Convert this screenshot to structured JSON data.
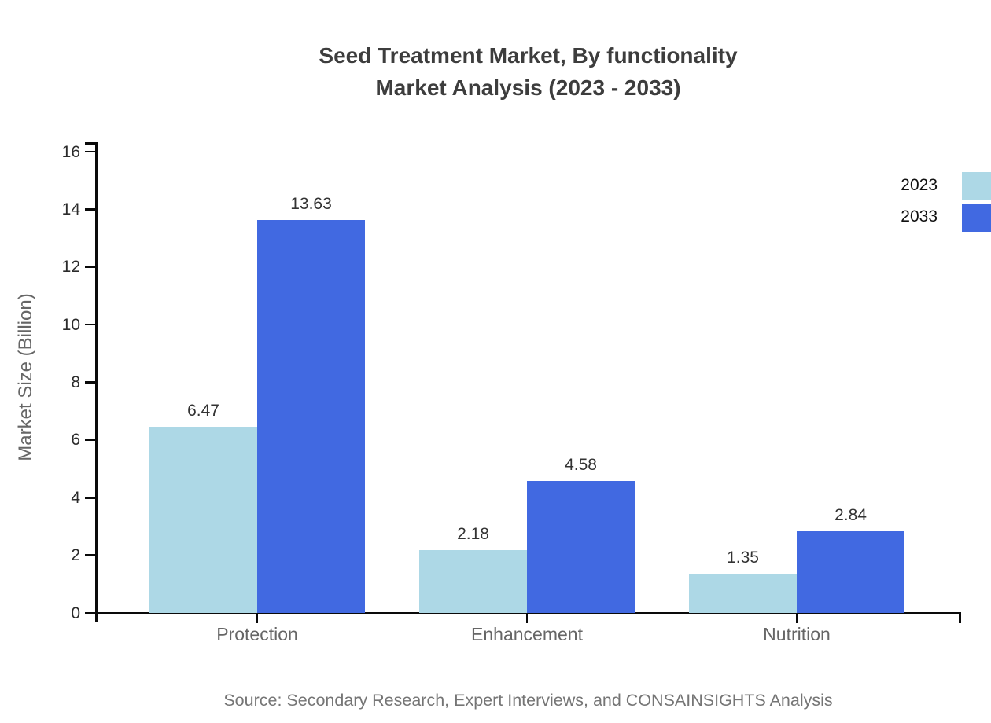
{
  "title": {
    "line1": "Seed Treatment Market, By functionality",
    "line2": "Market Analysis (2023 - 2033)"
  },
  "chart_data": {
    "type": "bar",
    "categories": [
      "Protection",
      "Enhancement",
      "Nutrition"
    ],
    "series": [
      {
        "name": "2023",
        "color": "#ADD8E6",
        "values": [
          6.47,
          2.18,
          1.35
        ]
      },
      {
        "name": "2033",
        "color": "#4169E1",
        "values": [
          13.63,
          4.58,
          2.84
        ]
      }
    ],
    "title": "Seed Treatment Market, By functionality Market Analysis (2023 - 2033)",
    "xlabel": "",
    "ylabel": "Market Size (Billion)",
    "ylim": [
      0,
      16
    ],
    "ytick_step": 2,
    "grid": false,
    "legend_position": "top-right",
    "value_labels": true
  },
  "source": "Source: Secondary Research, Expert Interviews, and CONSAINSIGHTS Analysis"
}
